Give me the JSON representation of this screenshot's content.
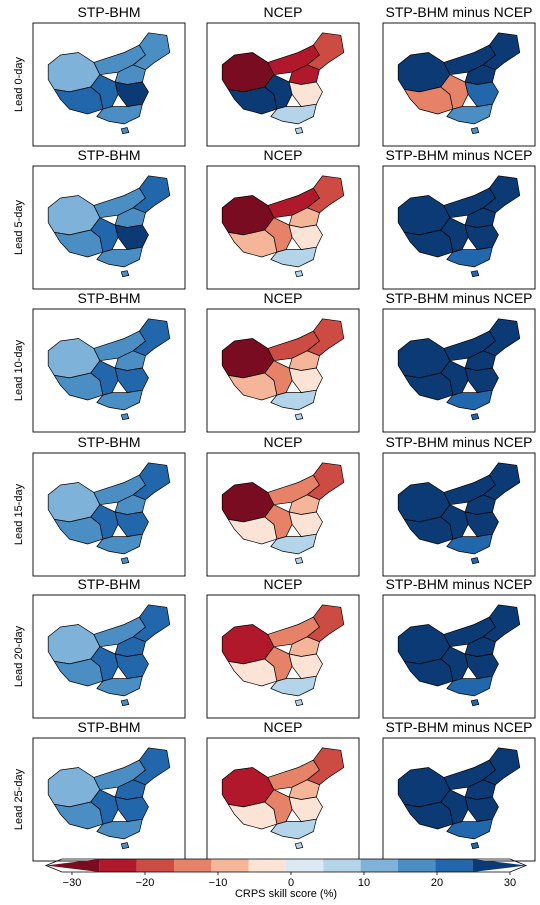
{
  "figure": {
    "columns": [
      "STP-BHM",
      "NCEP",
      "STP-BHM minus NCEP"
    ],
    "rows": [
      "Lead 0-day",
      "Lead 5-day",
      "Lead 10-day",
      "Lead 15-day",
      "Lead 20-day",
      "Lead 25-day"
    ]
  },
  "colorbar": {
    "title": "CRPS skill score (%)",
    "range": [
      -30,
      30
    ],
    "step": 5,
    "ticks": [
      "−30",
      "−20",
      "−10",
      "0",
      "10",
      "20",
      "30"
    ],
    "tick_values": [
      -30,
      -20,
      -10,
      0,
      10,
      20,
      30
    ],
    "colors": [
      "#67001f",
      "#b2182b",
      "#d6604d",
      "#f4a582",
      "#fddbc7",
      "#f7f7f7",
      "#d1e5f0",
      "#92c5de",
      "#4393c3",
      "#2166ac",
      "#053061"
    ],
    "bin_colors": [
      "#7a0c21",
      "#b2182b",
      "#cc4c44",
      "#e58268",
      "#f4b598",
      "#fbe3d6",
      "#dce9f3",
      "#b4d4e9",
      "#7fb2d8",
      "#4a8ec4",
      "#2266ac",
      "#0b3a74"
    ]
  },
  "map_region_values": {
    "STP-BHM": {
      "Lead 0-day": [
        8,
        10,
        12,
        14,
        16,
        18,
        20,
        12
      ],
      "Lead 5-day": [
        8,
        10,
        14,
        16,
        14,
        18,
        20,
        12
      ],
      "Lead 10-day": [
        8,
        12,
        14,
        16,
        14,
        18,
        18,
        12
      ],
      "Lead 15-day": [
        6,
        12,
        14,
        16,
        14,
        18,
        18,
        12
      ],
      "Lead 20-day": [
        6,
        12,
        16,
        16,
        14,
        18,
        18,
        12
      ],
      "Lead 25-day": [
        6,
        12,
        16,
        16,
        14,
        18,
        18,
        12
      ]
    },
    "NCEP": {
      "Lead 0-day": [
        -30,
        -28,
        -26,
        -24,
        28,
        30,
        -8,
        4
      ],
      "Lead 5-day": [
        -30,
        -28,
        -12,
        -24,
        -12,
        -18,
        -8,
        2
      ],
      "Lead 10-day": [
        -30,
        -22,
        -14,
        -24,
        -12,
        -18,
        -8,
        2
      ],
      "Lead 15-day": [
        -30,
        -20,
        -14,
        -24,
        -10,
        -18,
        -6,
        2
      ],
      "Lead 20-day": [
        -28,
        -18,
        -14,
        -24,
        -10,
        -18,
        -8,
        2
      ],
      "Lead 25-day": [
        -28,
        -20,
        -14,
        -24,
        -10,
        -18,
        -8,
        2
      ]
    },
    "STP-BHM minus NCEP": {
      "Lead 0-day": [
        30,
        28,
        20,
        22,
        -20,
        -16,
        18,
        14
      ],
      "Lead 5-day": [
        30,
        30,
        28,
        26,
        24,
        28,
        22,
        16
      ],
      "Lead 10-day": [
        30,
        30,
        28,
        26,
        24,
        28,
        22,
        18
      ],
      "Lead 15-day": [
        30,
        28,
        26,
        26,
        24,
        28,
        22,
        18
      ],
      "Lead 20-day": [
        30,
        28,
        26,
        26,
        24,
        28,
        22,
        18
      ],
      "Lead 25-day": [
        30,
        30,
        28,
        26,
        24,
        28,
        22,
        18
      ]
    }
  }
}
